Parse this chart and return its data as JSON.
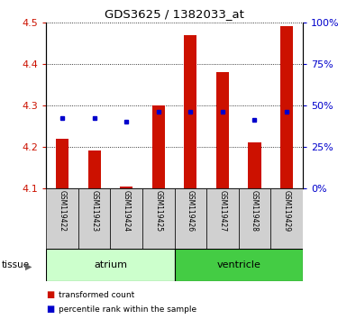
{
  "title": "GDS3625 / 1382033_at",
  "samples": [
    "GSM119422",
    "GSM119423",
    "GSM119424",
    "GSM119425",
    "GSM119426",
    "GSM119427",
    "GSM119428",
    "GSM119429"
  ],
  "bar_bottom": 4.1,
  "bar_tops": [
    4.22,
    4.19,
    4.105,
    4.3,
    4.47,
    4.38,
    4.21,
    4.49
  ],
  "percentile_values": [
    4.27,
    4.27,
    4.26,
    4.285,
    4.285,
    4.285,
    4.265,
    4.285
  ],
  "ylim": [
    4.1,
    4.5
  ],
  "yticks_left": [
    4.1,
    4.2,
    4.3,
    4.4,
    4.5
  ],
  "yticks_right": [
    0,
    25,
    50,
    75,
    100
  ],
  "ytick_right_labels": [
    "0%",
    "25%",
    "50%",
    "75%",
    "100%"
  ],
  "bar_color": "#cc1100",
  "percentile_color": "#0000cc",
  "tissue_groups": [
    {
      "label": "atrium",
      "start": 0,
      "end": 4,
      "color": "#ccffcc"
    },
    {
      "label": "ventricle",
      "start": 4,
      "end": 8,
      "color": "#44cc44"
    }
  ],
  "sample_label_color": "#d0d0d0",
  "left_label_color": "#cc1100",
  "right_label_color": "#0000cc",
  "legend_items": [
    {
      "label": "transformed count",
      "color": "#cc1100"
    },
    {
      "label": "percentile rank within the sample",
      "color": "#0000cc"
    }
  ]
}
